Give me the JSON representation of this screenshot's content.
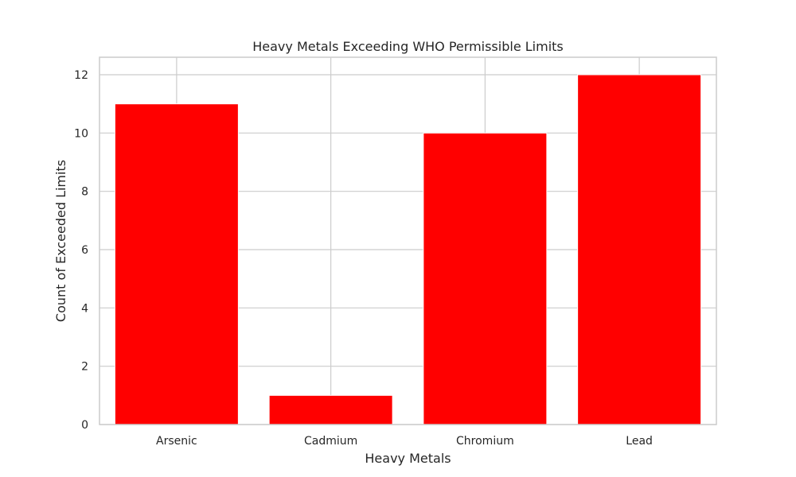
{
  "chart_data": {
    "type": "bar",
    "title": "Heavy Metals Exceeding WHO Permissible Limits",
    "xlabel": "Heavy Metals",
    "ylabel": "Count of Exceeded Limits",
    "categories": [
      "Arsenic",
      "Cadmium",
      "Chromium",
      "Lead"
    ],
    "values": [
      11,
      1,
      10,
      12
    ],
    "ylim": [
      0,
      12.6
    ],
    "yticks": [
      0,
      2,
      4,
      6,
      8,
      10,
      12
    ],
    "bar_color": "#ff0000",
    "grid": true
  }
}
